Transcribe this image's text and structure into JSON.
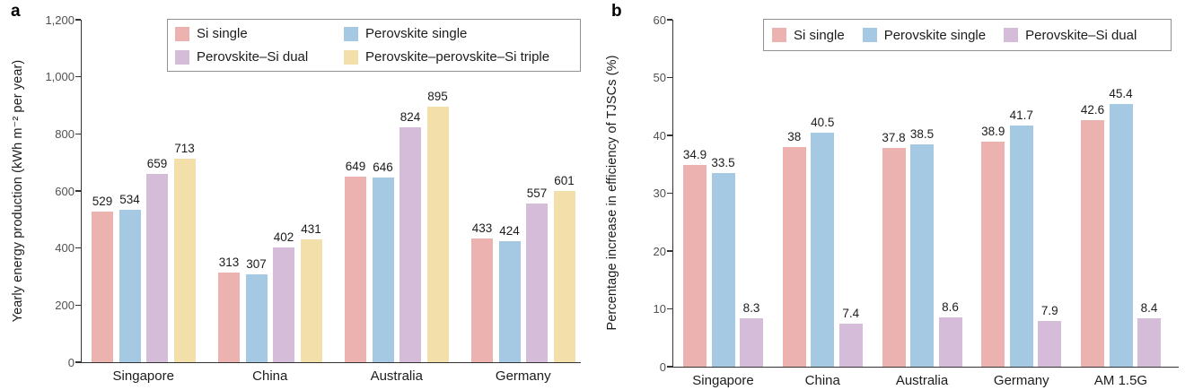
{
  "figure": {
    "background": "#ffffff",
    "panels": [
      {
        "label": "a"
      },
      {
        "label": "b"
      }
    ]
  },
  "colors": {
    "si_single": "#ECB2B0",
    "perovskite_single": "#A5C9E3",
    "perovskite_si_dual": "#D5BCD9",
    "perovskite_perovskite_si_triple": "#F2DFA9",
    "axis": "#333333",
    "tick_text": "#515151",
    "label_text": "#1c1c1c",
    "legend_border": "#8f9194"
  },
  "chart_data": [
    {
      "type": "bar",
      "panel": "a",
      "title": "",
      "categories": [
        "Singapore",
        "China",
        "Australia",
        "Germany"
      ],
      "series": [
        {
          "name": "Si single",
          "color": "#ECB2B0",
          "values": [
            529,
            313,
            649,
            433
          ]
        },
        {
          "name": "Perovskite single",
          "color": "#A5C9E3",
          "values": [
            534,
            307,
            646,
            424
          ]
        },
        {
          "name": "Perovskite–Si dual",
          "color": "#D5BCD9",
          "values": [
            659,
            402,
            824,
            557
          ]
        },
        {
          "name": "Perovskite–perovskite–Si triple",
          "color": "#F2DFA9",
          "values": [
            713,
            431,
            895,
            601
          ]
        }
      ],
      "xlabel": "",
      "ylabel": "Yearly energy production (kWh m⁻² per year)",
      "ylim": [
        0,
        1200
      ],
      "ytick_values": [
        0,
        200,
        400,
        600,
        800,
        1000,
        1200
      ],
      "ytick_labels": [
        "0",
        "200",
        "400",
        "600",
        "800",
        "1,000",
        "1,200"
      ],
      "grid": false,
      "legend_position": "top-inside",
      "legend_columns": 2
    },
    {
      "type": "bar",
      "panel": "b",
      "title": "",
      "categories": [
        "Singapore",
        "China",
        "Australia",
        "Germany",
        "AM 1.5G"
      ],
      "series": [
        {
          "name": "Si single",
          "color": "#ECB2B0",
          "values": [
            34.9,
            38,
            37.8,
            38.9,
            42.6
          ]
        },
        {
          "name": "Perovskite single",
          "color": "#A5C9E3",
          "values": [
            33.5,
            40.5,
            38.5,
            41.7,
            45.4
          ]
        },
        {
          "name": "Perovskite–Si dual",
          "color": "#D5BCD9",
          "values": [
            8.3,
            7.4,
            8.6,
            7.9,
            8.4
          ]
        }
      ],
      "xlabel": "",
      "ylabel": "Percentage increase in efficiency of TJSCs (%)",
      "ylim": [
        0,
        60
      ],
      "ytick_values": [
        0,
        10,
        20,
        30,
        40,
        50,
        60
      ],
      "ytick_labels": [
        "0",
        "10",
        "20",
        "30",
        "40",
        "50",
        "60"
      ],
      "grid": false,
      "legend_position": "top-inside",
      "legend_columns": 3
    }
  ]
}
